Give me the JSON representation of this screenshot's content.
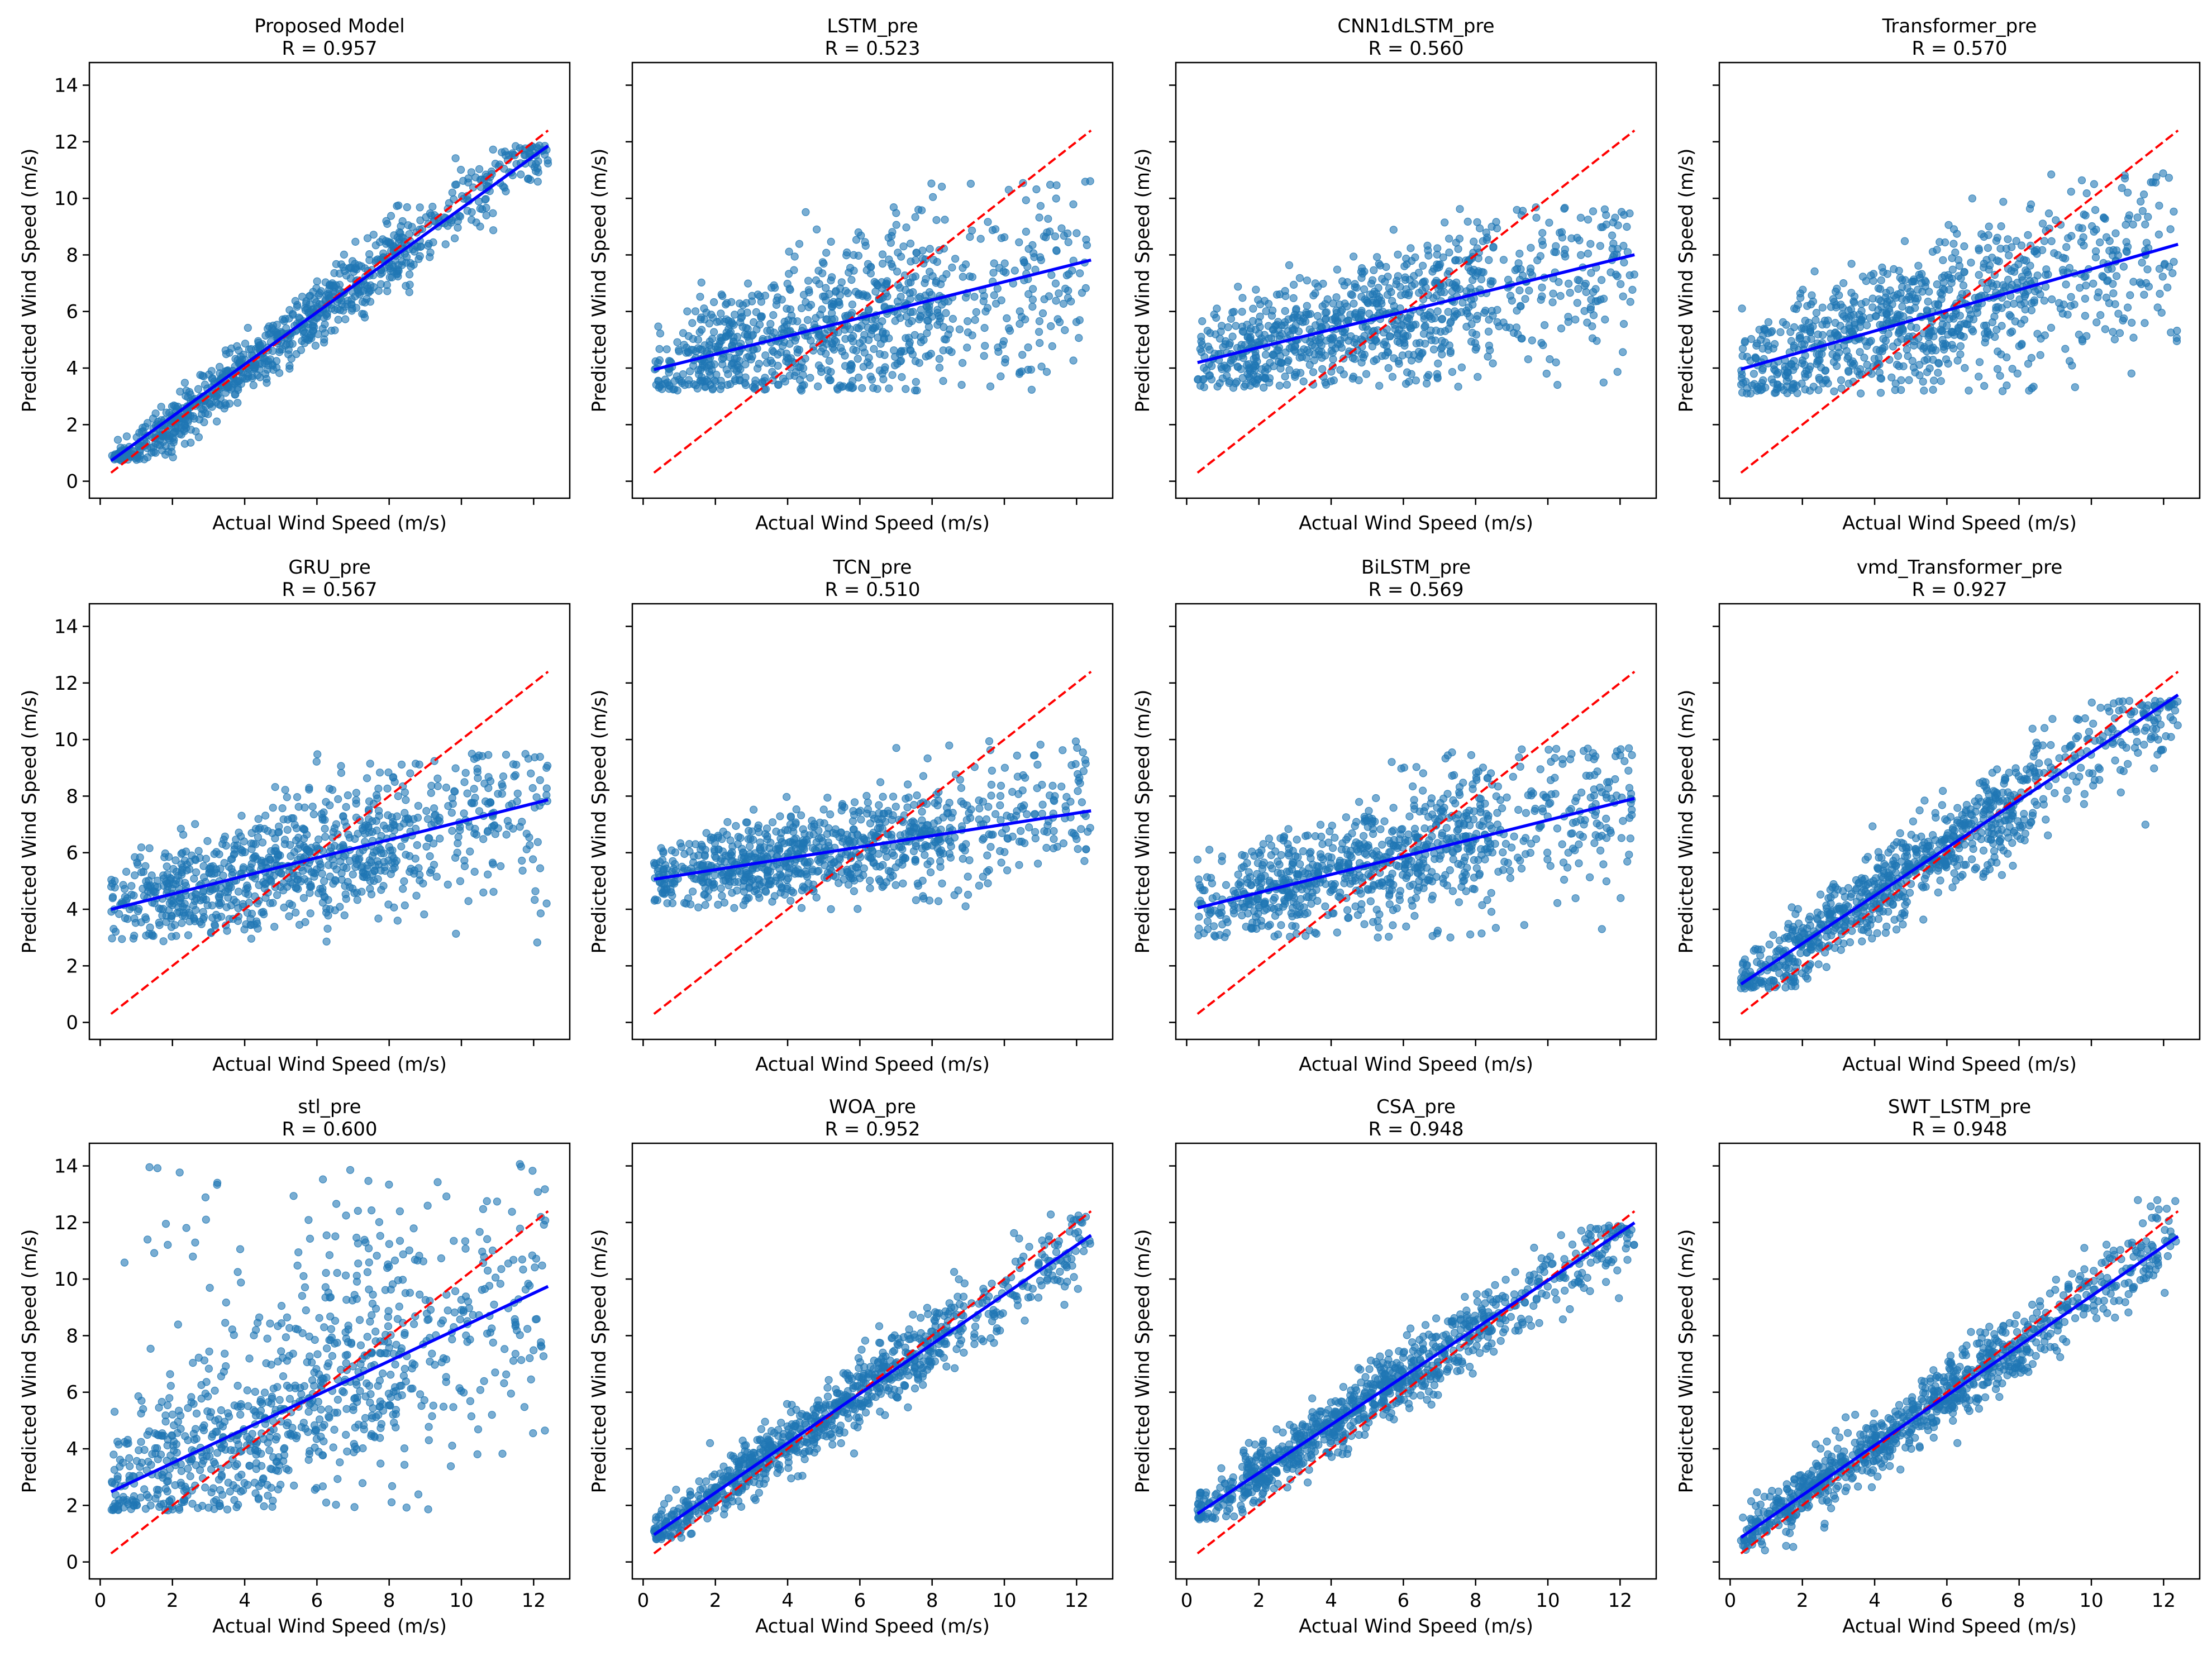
{
  "figure": {
    "layout": "3x4 grid of scatter plots",
    "sharex": true,
    "sharey": true
  },
  "colors": {
    "points": "#1f77b4",
    "fit_line": "#0000ff",
    "ideal_line": "#ff0000",
    "axes": "#000000"
  },
  "chart_data": [
    {
      "type": "scatter",
      "title": "Proposed Model",
      "subtitle": "R = 0.957",
      "r": 0.957,
      "fit": {
        "slope": 0.92,
        "intercept": 0.45
      },
      "scatter": {
        "mode": "linear",
        "slope": 0.97,
        "intercept": 0.1,
        "noise": 0.55,
        "clipMin": 0.7,
        "clipMax": 11.9
      },
      "xlabel": "Actual Wind Speed (m/s)",
      "ylabel": "Predicted Wind Speed (m/s)",
      "xlim": [
        -0.3,
        13.0
      ],
      "ylim": [
        -0.6,
        14.8
      ],
      "xticks": [
        0,
        2,
        4,
        6,
        8,
        10,
        12
      ],
      "yticks": [
        0,
        2,
        4,
        6,
        8,
        10,
        12,
        14
      ],
      "ideal_line": {
        "x": [
          0.3,
          12.4
        ],
        "y": [
          0.3,
          12.4
        ]
      },
      "show_xtick_labels": false,
      "show_ylabel": true
    },
    {
      "type": "scatter",
      "title": "LSTM_pre",
      "subtitle": "R = 0.523",
      "r": 0.523,
      "fit": {
        "slope": 0.32,
        "intercept": 3.85
      },
      "scatter": {
        "mode": "band",
        "slope": 0.32,
        "intercept": 3.85,
        "noise": 1.5,
        "clipMin": 3.2,
        "clipMax": 10.7
      },
      "xlabel": "Actual Wind Speed (m/s)",
      "ylabel": "Predicted Wind Speed (m/s)",
      "xlim": [
        -0.3,
        13.0
      ],
      "ylim": [
        -0.6,
        14.8
      ],
      "xticks": [
        0,
        2,
        4,
        6,
        8,
        10,
        12
      ],
      "yticks": [
        0,
        2,
        4,
        6,
        8,
        10,
        12,
        14
      ],
      "ideal_line": {
        "x": [
          0.3,
          12.4
        ],
        "y": [
          0.3,
          12.4
        ]
      },
      "show_xtick_labels": false,
      "show_ylabel": true
    },
    {
      "type": "scatter",
      "title": "CNN1dLSTM_pre",
      "subtitle": "R = 0.560",
      "r": 0.56,
      "fit": {
        "slope": 0.315,
        "intercept": 4.1
      },
      "scatter": {
        "mode": "band",
        "slope": 0.315,
        "intercept": 4.1,
        "noise": 1.4,
        "clipMin": 3.3,
        "clipMax": 9.7
      },
      "xlabel": "Actual Wind Speed (m/s)",
      "ylabel": "Predicted Wind Speed (m/s)",
      "xlim": [
        -0.3,
        13.0
      ],
      "ylim": [
        -0.6,
        14.8
      ],
      "xticks": [
        0,
        2,
        4,
        6,
        8,
        10,
        12
      ],
      "yticks": [
        0,
        2,
        4,
        6,
        8,
        10,
        12,
        14
      ],
      "ideal_line": {
        "x": [
          0.3,
          12.4
        ],
        "y": [
          0.3,
          12.4
        ]
      },
      "show_xtick_labels": false,
      "show_ylabel": true
    },
    {
      "type": "scatter",
      "title": "Transformer_pre",
      "subtitle": "R = 0.570",
      "r": 0.57,
      "fit": {
        "slope": 0.365,
        "intercept": 3.85
      },
      "scatter": {
        "mode": "band",
        "slope": 0.365,
        "intercept": 3.85,
        "noise": 1.5,
        "clipMin": 3.1,
        "clipMax": 10.9
      },
      "xlabel": "Actual Wind Speed (m/s)",
      "ylabel": "Predicted Wind Speed (m/s)",
      "xlim": [
        -0.3,
        13.0
      ],
      "ylim": [
        -0.6,
        14.8
      ],
      "xticks": [
        0,
        2,
        4,
        6,
        8,
        10,
        12
      ],
      "yticks": [
        0,
        2,
        4,
        6,
        8,
        10,
        12,
        14
      ],
      "ideal_line": {
        "x": [
          0.3,
          12.4
        ],
        "y": [
          0.3,
          12.4
        ]
      },
      "show_xtick_labels": false,
      "show_ylabel": true
    },
    {
      "type": "scatter",
      "title": "GRU_pre",
      "subtitle": "R = 0.567",
      "r": 0.567,
      "fit": {
        "slope": 0.32,
        "intercept": 3.9
      },
      "scatter": {
        "mode": "band",
        "slope": 0.32,
        "intercept": 3.9,
        "noise": 1.3,
        "clipMin": 2.8,
        "clipMax": 9.5
      },
      "xlabel": "Actual Wind Speed (m/s)",
      "ylabel": "Predicted Wind Speed (m/s)",
      "xlim": [
        -0.3,
        13.0
      ],
      "ylim": [
        -0.6,
        14.8
      ],
      "xticks": [
        0,
        2,
        4,
        6,
        8,
        10,
        12
      ],
      "yticks": [
        0,
        2,
        4,
        6,
        8,
        10,
        12,
        14
      ],
      "ideal_line": {
        "x": [
          0.3,
          12.4
        ],
        "y": [
          0.3,
          12.4
        ]
      },
      "show_xtick_labels": false,
      "show_ylabel": true
    },
    {
      "type": "scatter",
      "title": "TCN_pre",
      "subtitle": "R = 0.510",
      "r": 0.51,
      "fit": {
        "slope": 0.2,
        "intercept": 5.0
      },
      "scatter": {
        "mode": "band",
        "slope": 0.2,
        "intercept": 5.0,
        "noise": 1.0,
        "clipMin": 4.0,
        "clipMax": 10.0
      },
      "xlabel": "Actual Wind Speed (m/s)",
      "ylabel": "Predicted Wind Speed (m/s)",
      "xlim": [
        -0.3,
        13.0
      ],
      "ylim": [
        -0.6,
        14.8
      ],
      "xticks": [
        0,
        2,
        4,
        6,
        8,
        10,
        12
      ],
      "yticks": [
        0,
        2,
        4,
        6,
        8,
        10,
        12,
        14
      ],
      "ideal_line": {
        "x": [
          0.3,
          12.4
        ],
        "y": [
          0.3,
          12.4
        ]
      },
      "show_xtick_labels": false,
      "show_ylabel": true
    },
    {
      "type": "scatter",
      "title": "BiLSTM_pre",
      "subtitle": "R = 0.569",
      "r": 0.569,
      "fit": {
        "slope": 0.32,
        "intercept": 3.95
      },
      "scatter": {
        "mode": "band",
        "slope": 0.32,
        "intercept": 3.95,
        "noise": 1.3,
        "clipMin": 3.0,
        "clipMax": 9.7
      },
      "xlabel": "Actual Wind Speed (m/s)",
      "ylabel": "Predicted Wind Speed (m/s)",
      "xlim": [
        -0.3,
        13.0
      ],
      "ylim": [
        -0.6,
        14.8
      ],
      "xticks": [
        0,
        2,
        4,
        6,
        8,
        10,
        12
      ],
      "yticks": [
        0,
        2,
        4,
        6,
        8,
        10,
        12,
        14
      ],
      "ideal_line": {
        "x": [
          0.3,
          12.4
        ],
        "y": [
          0.3,
          12.4
        ]
      },
      "show_xtick_labels": false,
      "show_ylabel": true
    },
    {
      "type": "scatter",
      "title": "vmd_Transformer_pre",
      "subtitle": "R = 0.927",
      "r": 0.927,
      "fit": {
        "slope": 0.845,
        "intercept": 1.1
      },
      "scatter": {
        "mode": "linear",
        "slope": 0.86,
        "intercept": 1.0,
        "noise": 0.8,
        "clipMin": 1.2,
        "clipMax": 11.4
      },
      "xlabel": "Actual Wind Speed (m/s)",
      "ylabel": "Predicted Wind Speed (m/s)",
      "xlim": [
        -0.3,
        13.0
      ],
      "ylim": [
        -0.6,
        14.8
      ],
      "xticks": [
        0,
        2,
        4,
        6,
        8,
        10,
        12
      ],
      "yticks": [
        0,
        2,
        4,
        6,
        8,
        10,
        12,
        14
      ],
      "ideal_line": {
        "x": [
          0.3,
          12.4
        ],
        "y": [
          0.3,
          12.4
        ]
      },
      "show_xtick_labels": false,
      "show_ylabel": true
    },
    {
      "type": "scatter",
      "title": "stl_pre",
      "subtitle": "R = 0.600",
      "r": 0.6,
      "fit": {
        "slope": 0.6,
        "intercept": 2.3
      },
      "scatter": {
        "mode": "wide",
        "slope": 0.6,
        "intercept": 2.3,
        "noise": 1.6,
        "clipMin": 1.8,
        "clipMax": 14.1
      },
      "xlabel": "Actual Wind Speed (m/s)",
      "ylabel": "Predicted Wind Speed (m/s)",
      "xlim": [
        -0.3,
        13.0
      ],
      "ylim": [
        -0.6,
        14.8
      ],
      "xticks": [
        0,
        2,
        4,
        6,
        8,
        10,
        12
      ],
      "yticks": [
        0,
        2,
        4,
        6,
        8,
        10,
        12,
        14
      ],
      "ideal_line": {
        "x": [
          0.3,
          12.4
        ],
        "y": [
          0.3,
          12.4
        ]
      },
      "show_xtick_labels": true,
      "show_ylabel": true
    },
    {
      "type": "scatter",
      "title": "WOA_pre",
      "subtitle": "R = 0.952",
      "r": 0.952,
      "fit": {
        "slope": 0.875,
        "intercept": 0.7
      },
      "scatter": {
        "mode": "linear",
        "slope": 0.88,
        "intercept": 0.7,
        "noise": 0.6,
        "clipMin": 0.8,
        "clipMax": 12.3
      },
      "xlabel": "Actual Wind Speed (m/s)",
      "ylabel": "Predicted Wind Speed (m/s)",
      "xlim": [
        -0.3,
        13.0
      ],
      "ylim": [
        -0.6,
        14.8
      ],
      "xticks": [
        0,
        2,
        4,
        6,
        8,
        10,
        12
      ],
      "yticks": [
        0,
        2,
        4,
        6,
        8,
        10,
        12,
        14
      ],
      "ideal_line": {
        "x": [
          0.3,
          12.4
        ],
        "y": [
          0.3,
          12.4
        ]
      },
      "show_xtick_labels": true,
      "show_ylabel": true
    },
    {
      "type": "scatter",
      "title": "CSA_pre",
      "subtitle": "R = 0.948",
      "r": 0.948,
      "fit": {
        "slope": 0.85,
        "intercept": 1.45
      },
      "scatter": {
        "mode": "linear",
        "slope": 0.85,
        "intercept": 1.45,
        "noise": 0.6,
        "clipMin": 1.5,
        "clipMax": 11.9
      },
      "xlabel": "Actual Wind Speed (m/s)",
      "ylabel": "Predicted Wind Speed (m/s)",
      "xlim": [
        -0.3,
        13.0
      ],
      "ylim": [
        -0.6,
        14.8
      ],
      "xticks": [
        0,
        2,
        4,
        6,
        8,
        10,
        12
      ],
      "yticks": [
        0,
        2,
        4,
        6,
        8,
        10,
        12,
        14
      ],
      "ideal_line": {
        "x": [
          0.3,
          12.4
        ],
        "y": [
          0.3,
          12.4
        ]
      },
      "show_xtick_labels": true,
      "show_ylabel": true
    },
    {
      "type": "scatter",
      "title": "SWT_LSTM_pre",
      "subtitle": "R = 0.948",
      "r": 0.948,
      "fit": {
        "slope": 0.88,
        "intercept": 0.6
      },
      "scatter": {
        "mode": "linear",
        "slope": 0.88,
        "intercept": 0.6,
        "noise": 0.62,
        "clipMin": 0.4,
        "clipMax": 13.0
      },
      "xlabel": "Actual Wind Speed (m/s)",
      "ylabel": "Predicted Wind Speed (m/s)",
      "xlim": [
        -0.3,
        13.0
      ],
      "ylim": [
        -0.6,
        14.8
      ],
      "xticks": [
        0,
        2,
        4,
        6,
        8,
        10,
        12
      ],
      "yticks": [
        0,
        2,
        4,
        6,
        8,
        10,
        12,
        14
      ],
      "ideal_line": {
        "x": [
          0.3,
          12.4
        ],
        "y": [
          0.3,
          12.4
        ]
      },
      "show_xtick_labels": true,
      "show_ylabel": true
    }
  ]
}
